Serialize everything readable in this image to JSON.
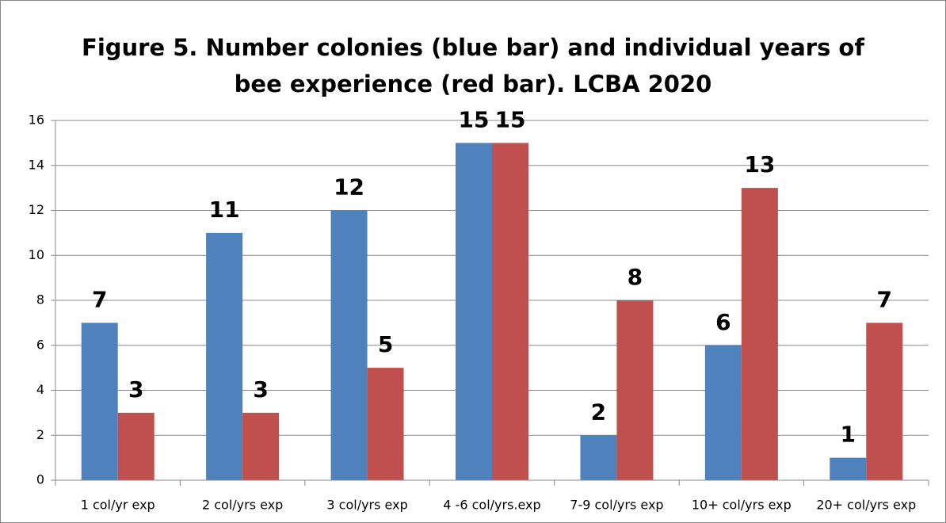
{
  "chart_data": {
    "type": "bar",
    "title": [
      "Figure 5. Number colonies (blue bar) and individual years of",
      "bee experience (red bar). LCBA 2020"
    ],
    "categories": [
      "1 col/yr exp",
      "2 col/yrs exp",
      "3 col/yrs exp",
      "4 -6 col/yrs.exp",
      "7-9 col/yrs exp",
      "10+ col/yrs exp",
      "20+ col/yrs exp"
    ],
    "series": [
      {
        "color": "#4f81bd",
        "values": [
          7,
          11,
          12,
          15,
          2,
          6,
          1
        ]
      },
      {
        "color": "#c0504d",
        "values": [
          3,
          3,
          5,
          15,
          8,
          13,
          7
        ]
      }
    ],
    "ylim": [
      0,
      16
    ],
    "yticks": [
      0,
      2,
      4,
      6,
      8,
      10,
      12,
      14,
      16
    ],
    "grid": true
  }
}
